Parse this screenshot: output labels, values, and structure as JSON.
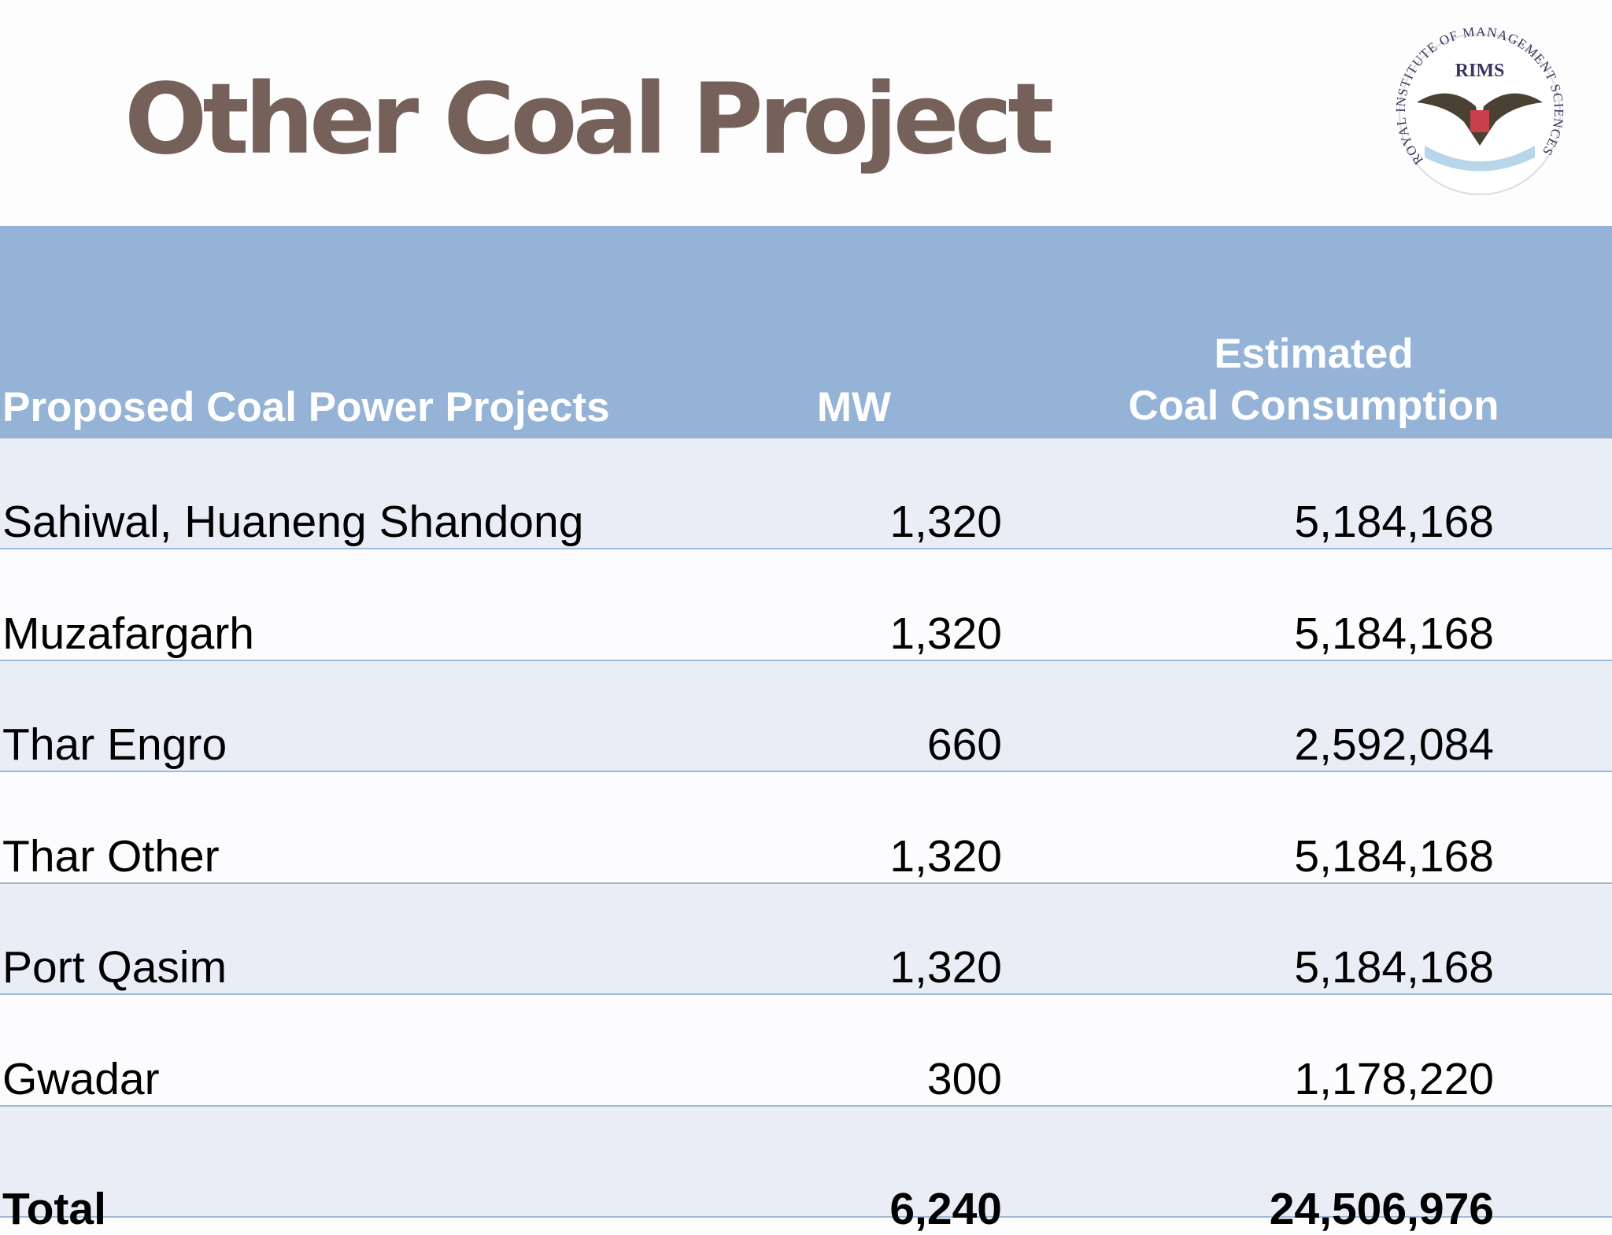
{
  "header": {
    "title": "Other Coal Project",
    "logo": {
      "abbreviation": "RIMS",
      "ring_text": "ROYAL INSTITUTE OF MANAGEMENT SCIENCES"
    }
  },
  "table": {
    "columns": [
      "Proposed Coal Power Projects",
      "MW",
      [
        "Estimated",
        "Coal Consumption"
      ]
    ],
    "rows": [
      [
        "Sahiwal, Huaneng Shandong",
        "1,320",
        "5,184,168"
      ],
      [
        "Muzafargarh",
        "1,320",
        "5,184,168"
      ],
      [
        "Thar Engro",
        "660",
        "2,592,084"
      ],
      [
        "Thar Other",
        "1,320",
        "5,184,168"
      ],
      [
        "Port Qasim",
        "1,320",
        "5,184,168"
      ],
      [
        "Gwadar",
        "300",
        "1,178,220"
      ]
    ],
    "total": [
      "Total",
      "6,240",
      "24,506,976"
    ]
  }
}
